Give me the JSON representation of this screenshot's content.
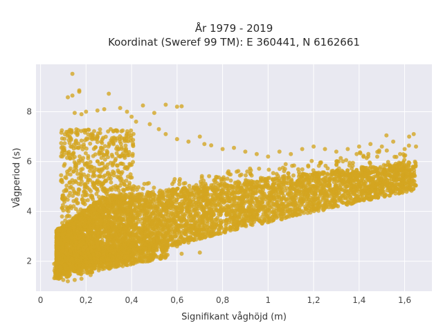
{
  "chart_data": {
    "type": "scatter",
    "title_lines": [
      "År 1979 - 2019",
      "Koordinat (Sweref 99 TM): E 360441, N 6162661"
    ],
    "xlabel": "Signifikant våghöjd (m)",
    "ylabel": "Vågperiod (s)",
    "xlim": [
      -0.02,
      1.72
    ],
    "ylim": [
      0.8,
      9.9
    ],
    "x_ticks": [
      0,
      0.2,
      0.4,
      0.6,
      0.8,
      1,
      1.2,
      1.4,
      1.6
    ],
    "x_tick_labels": [
      "0",
      "0,2",
      "0,4",
      "0,6",
      "0,8",
      "1",
      "1,2",
      "1,4",
      "1,6"
    ],
    "y_ticks": [
      2,
      4,
      6,
      8
    ],
    "y_tick_labels": [
      "2",
      "4",
      "6",
      "8"
    ],
    "grid": true,
    "marker_color": "#D4A520",
    "background_color": "#E9E9F1",
    "series": [
      {
        "values_xy": [
          [
            0.14,
            9.52
          ],
          [
            0.12,
            8.58
          ],
          [
            0.14,
            8.65
          ],
          [
            0.17,
            8.85
          ],
          [
            0.17,
            8.8
          ],
          [
            0.3,
            8.72
          ],
          [
            0.45,
            8.25
          ],
          [
            0.55,
            8.28
          ],
          [
            0.6,
            8.2
          ],
          [
            0.62,
            8.22
          ],
          [
            0.15,
            7.95
          ],
          [
            0.18,
            7.9
          ],
          [
            0.2,
            8.0
          ],
          [
            0.25,
            8.05
          ],
          [
            0.28,
            8.1
          ],
          [
            0.35,
            8.15
          ],
          [
            0.38,
            8.0
          ],
          [
            0.4,
            7.8
          ],
          [
            0.42,
            7.6
          ],
          [
            0.5,
            7.95
          ],
          [
            0.48,
            7.5
          ],
          [
            0.52,
            7.3
          ],
          [
            0.55,
            7.1
          ],
          [
            0.6,
            6.9
          ],
          [
            0.65,
            6.8
          ],
          [
            0.7,
            7.0
          ],
          [
            0.72,
            6.7
          ],
          [
            0.75,
            6.65
          ],
          [
            0.8,
            6.5
          ],
          [
            0.85,
            6.55
          ],
          [
            0.9,
            6.4
          ],
          [
            0.95,
            6.3
          ],
          [
            1.0,
            6.2
          ],
          [
            1.05,
            6.4
          ],
          [
            1.1,
            6.3
          ],
          [
            1.15,
            6.5
          ],
          [
            1.2,
            6.6
          ],
          [
            1.25,
            6.5
          ],
          [
            1.3,
            6.4
          ],
          [
            1.35,
            6.5
          ],
          [
            1.4,
            6.6
          ],
          [
            1.45,
            6.7
          ],
          [
            1.5,
            6.6
          ],
          [
            1.55,
            6.8
          ],
          [
            1.58,
            6.3
          ],
          [
            1.6,
            6.5
          ],
          [
            1.62,
            7.0
          ],
          [
            1.64,
            7.1
          ],
          [
            1.65,
            6.6
          ],
          [
            1.52,
            7.05
          ],
          [
            1.48,
            5.7
          ],
          [
            1.42,
            5.2
          ],
          [
            1.38,
            4.95
          ],
          [
            1.3,
            4.9
          ],
          [
            1.25,
            4.7
          ],
          [
            1.2,
            4.3
          ],
          [
            1.1,
            4.6
          ],
          [
            1.05,
            4.1
          ],
          [
            0.98,
            3.9
          ],
          [
            0.9,
            3.7
          ],
          [
            0.86,
            3.4
          ],
          [
            0.82,
            3.3
          ],
          [
            0.75,
            3.1
          ],
          [
            0.7,
            2.9
          ],
          [
            0.65,
            2.75
          ],
          [
            0.6,
            2.6
          ],
          [
            0.55,
            2.5
          ],
          [
            0.5,
            2.4
          ],
          [
            0.45,
            2.35
          ],
          [
            0.4,
            2.25
          ],
          [
            0.35,
            2.15
          ],
          [
            0.3,
            2.05
          ],
          [
            0.25,
            1.95
          ],
          [
            0.2,
            1.85
          ],
          [
            0.15,
            1.7
          ],
          [
            0.1,
            1.55
          ],
          [
            0.07,
            1.45
          ],
          [
            0.08,
            1.3
          ],
          [
            0.1,
            1.25
          ],
          [
            0.12,
            1.2
          ],
          [
            0.15,
            1.25
          ],
          [
            0.18,
            1.3
          ],
          [
            0.22,
            1.45
          ],
          [
            0.5,
            2.25
          ],
          [
            0.62,
            2.3
          ],
          [
            0.7,
            2.35
          ],
          [
            0.12,
            7.1
          ],
          [
            0.13,
            7.2
          ],
          [
            0.16,
            7.15
          ],
          [
            0.19,
            7.25
          ]
        ]
      }
    ]
  }
}
